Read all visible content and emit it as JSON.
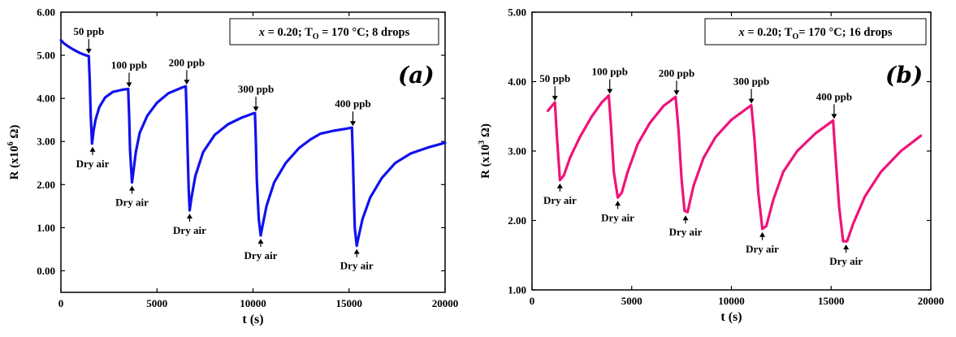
{
  "colors": {
    "panel_a": "#1111ee",
    "panel_b": "#f0127a",
    "axis": "#000000",
    "panel_letter": "#1f2d9e"
  },
  "chart_data": [
    {
      "type": "line",
      "panel_label": "(a)",
      "condition_prefix": "x",
      "condition_rest": " = 0.20; T",
      "condition_sub": "O",
      "condition_suffix": " = 170 °C; 8 drops",
      "xlabel": "t (s)",
      "ylabel_prefix": "R (x10",
      "ylabel_sup": "6",
      "ylabel_suffix": " Ω)",
      "xlim": [
        0,
        20000
      ],
      "ylim": [
        -0.5,
        6.0
      ],
      "x_ticks": [
        "0",
        "5000",
        "10000",
        "15000",
        "20000"
      ],
      "x_tick_values": [
        0,
        5000,
        10000,
        15000,
        20000
      ],
      "y_ticks": [
        "0.00",
        "1.00",
        "2.00",
        "3.00",
        "4.00",
        "5.00",
        "6.00"
      ],
      "y_tick_values": [
        0,
        1,
        2,
        3,
        4,
        5,
        6
      ],
      "x": [
        0,
        150,
        400,
        700,
        1000,
        1300,
        1450,
        1500,
        1550,
        1620,
        1700,
        1800,
        2000,
        2300,
        2700,
        3200,
        3500,
        3550,
        3600,
        3700,
        3800,
        3900,
        4100,
        4500,
        5000,
        5600,
        6300,
        6500,
        6550,
        6600,
        6650,
        6700,
        6800,
        7000,
        7400,
        8000,
        8700,
        9400,
        10000,
        10100,
        10150,
        10200,
        10300,
        10400,
        10500,
        10700,
        11100,
        11700,
        12400,
        13000,
        13500,
        14200,
        14900,
        15150,
        15200,
        15250,
        15300,
        15400,
        15500,
        15700,
        16100,
        16700,
        17400,
        18200,
        19100,
        20000
      ],
      "series": [
        {
          "values": [
            5.35,
            5.28,
            5.2,
            5.12,
            5.05,
            5.0,
            4.98,
            4.4,
            3.6,
            2.95,
            3.25,
            3.5,
            3.8,
            4.02,
            4.15,
            4.2,
            4.22,
            3.6,
            2.8,
            2.05,
            2.4,
            2.75,
            3.2,
            3.6,
            3.9,
            4.12,
            4.25,
            4.28,
            3.6,
            2.7,
            1.9,
            1.4,
            1.7,
            2.2,
            2.75,
            3.15,
            3.4,
            3.55,
            3.65,
            3.66,
            3.0,
            2.1,
            1.2,
            0.82,
            1.05,
            1.5,
            2.05,
            2.5,
            2.85,
            3.05,
            3.18,
            3.25,
            3.3,
            3.32,
            2.6,
            1.7,
            1.0,
            0.58,
            0.8,
            1.2,
            1.7,
            2.15,
            2.5,
            2.72,
            2.86,
            2.97
          ]
        }
      ],
      "annotations": [
        {
          "text": "50 ppb",
          "x": 1450,
          "y": 5.0,
          "side": "top"
        },
        {
          "text": "100 ppb",
          "x": 3550,
          "y": 4.22,
          "side": "top"
        },
        {
          "text": "200 ppb",
          "x": 6550,
          "y": 4.28,
          "side": "top"
        },
        {
          "text": "300 ppb",
          "x": 10150,
          "y": 3.66,
          "side": "top"
        },
        {
          "text": "400 ppb",
          "x": 15200,
          "y": 3.32,
          "side": "top"
        },
        {
          "text": "Dry air",
          "x": 1650,
          "y": 2.95,
          "side": "bottom"
        },
        {
          "text": "Dry air",
          "x": 3700,
          "y": 2.05,
          "side": "bottom"
        },
        {
          "text": "Dry air",
          "x": 6700,
          "y": 1.4,
          "side": "bottom"
        },
        {
          "text": "Dry air",
          "x": 10400,
          "y": 0.82,
          "side": "bottom"
        },
        {
          "text": "Dry air",
          "x": 15400,
          "y": 0.58,
          "side": "bottom"
        }
      ]
    },
    {
      "type": "line",
      "panel_label": "(b)",
      "condition_prefix": "x",
      "condition_rest": " = 0.20; T",
      "condition_sub": "O",
      "condition_suffix": "= 170 °C; 16 drops",
      "xlabel": "t (s)",
      "ylabel_prefix": "R (x10",
      "ylabel_sup": "3",
      "ylabel_suffix": " Ω)",
      "xlim": [
        0,
        20000
      ],
      "ylim": [
        1.0,
        5.0
      ],
      "x_ticks": [
        "0",
        "5000",
        "10000",
        "15000",
        "20000"
      ],
      "x_tick_values": [
        0,
        5000,
        10000,
        15000,
        20000
      ],
      "y_ticks": [
        "1.00",
        "2.00",
        "3.00",
        "4.00",
        "5.00"
      ],
      "y_tick_values": [
        1,
        2,
        3,
        4,
        5
      ],
      "x": [
        800,
        1000,
        1150,
        1250,
        1400,
        1600,
        1900,
        2400,
        3000,
        3500,
        3850,
        3950,
        4100,
        4300,
        4500,
        4800,
        5300,
        5900,
        6600,
        7200,
        7350,
        7500,
        7650,
        7800,
        8100,
        8600,
        9200,
        10000,
        11000,
        11150,
        11350,
        11550,
        11750,
        12100,
        12600,
        13300,
        14200,
        15100,
        15200,
        15400,
        15600,
        15800,
        16100,
        16700,
        17500,
        18500,
        19500
      ],
      "series": [
        {
          "values": [
            3.58,
            3.65,
            3.7,
            3.2,
            2.58,
            2.65,
            2.9,
            3.2,
            3.5,
            3.7,
            3.8,
            3.4,
            2.7,
            2.33,
            2.4,
            2.7,
            3.1,
            3.4,
            3.65,
            3.78,
            3.3,
            2.6,
            2.14,
            2.12,
            2.5,
            2.9,
            3.2,
            3.45,
            3.66,
            3.2,
            2.4,
            1.88,
            1.92,
            2.3,
            2.7,
            3.0,
            3.25,
            3.44,
            3.0,
            2.2,
            1.7,
            1.7,
            1.95,
            2.35,
            2.7,
            3.0,
            3.22
          ]
        }
      ],
      "annotations": [
        {
          "text": "50 ppb",
          "x": 1150,
          "y": 3.7,
          "side": "top"
        },
        {
          "text": "100 ppb",
          "x": 3900,
          "y": 3.8,
          "side": "top"
        },
        {
          "text": "200 ppb",
          "x": 7250,
          "y": 3.78,
          "side": "top"
        },
        {
          "text": "300 ppb",
          "x": 11000,
          "y": 3.66,
          "side": "top"
        },
        {
          "text": "400 ppb",
          "x": 15150,
          "y": 3.44,
          "side": "top"
        },
        {
          "text": "Dry air",
          "x": 1400,
          "y": 2.58,
          "side": "bottom"
        },
        {
          "text": "Dry air",
          "x": 4300,
          "y": 2.33,
          "side": "bottom"
        },
        {
          "text": "Dry air",
          "x": 7700,
          "y": 2.12,
          "side": "bottom"
        },
        {
          "text": "Dry air",
          "x": 11550,
          "y": 1.88,
          "side": "bottom"
        },
        {
          "text": "Dry air",
          "x": 15750,
          "y": 1.7,
          "side": "bottom"
        }
      ]
    }
  ]
}
